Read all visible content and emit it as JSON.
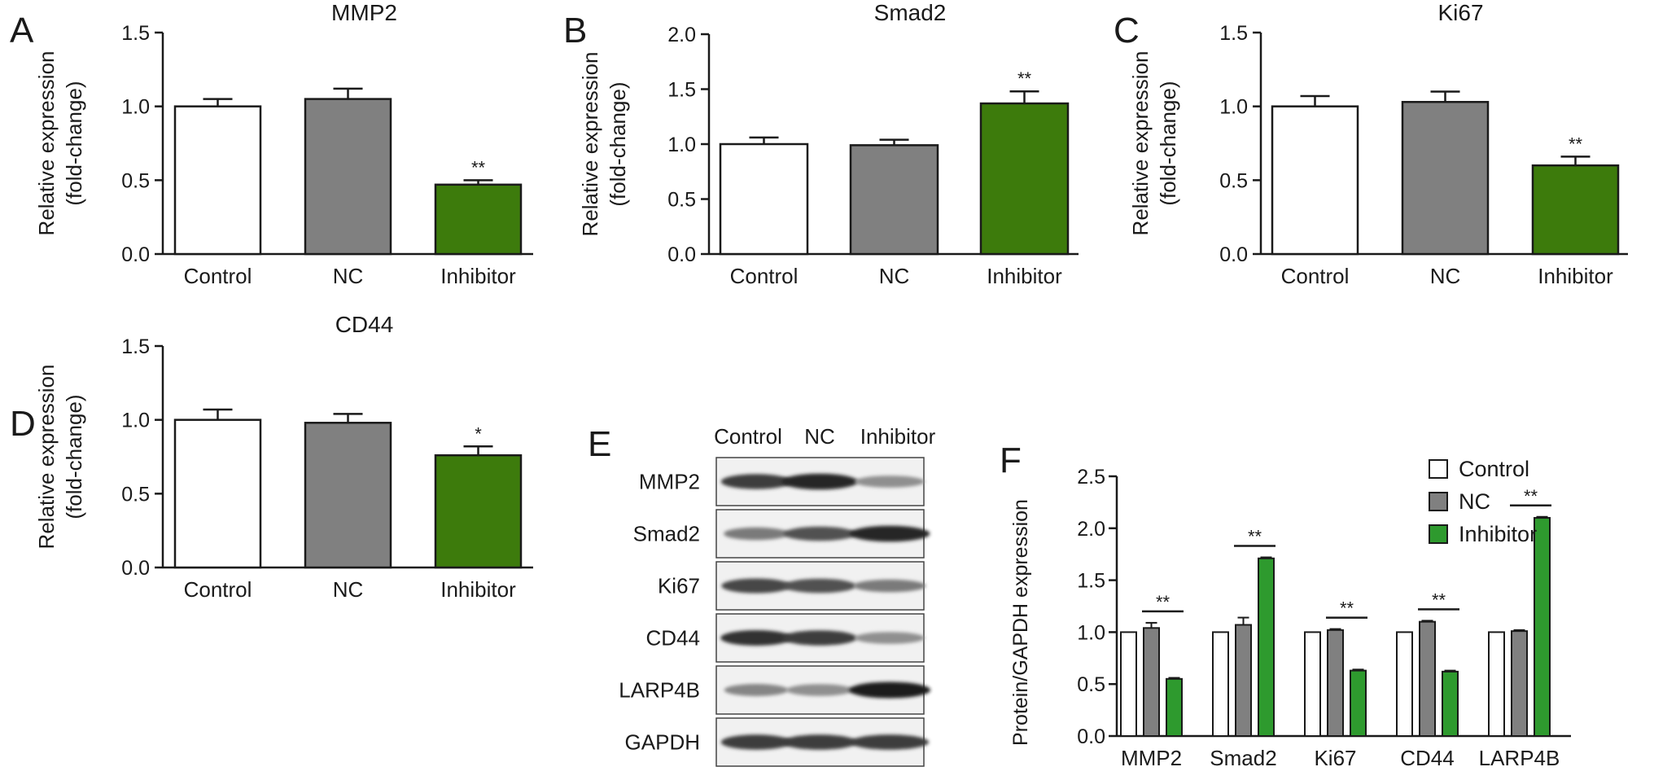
{
  "colors": {
    "control": "#ffffff",
    "nc": "#808080",
    "inhibitor": "#3d7b0c",
    "inhibitor_f": "#2e9a2e",
    "axis": "#1a1a1a"
  },
  "chart_data": [
    {
      "panel": "A",
      "type": "bar",
      "title": "MMP2",
      "ylabel": [
        "Relative expression",
        "(fold-change)"
      ],
      "categories": [
        "Control",
        "NC",
        "Inhibitor"
      ],
      "values": [
        1.0,
        1.05,
        0.47
      ],
      "errors": [
        0.05,
        0.07,
        0.03
      ],
      "sig": [
        "",
        "",
        "**"
      ],
      "ylim": [
        0,
        1.5
      ],
      "yticks": [
        "0.0",
        "0.5",
        "1.0",
        "1.5"
      ]
    },
    {
      "panel": "B",
      "type": "bar",
      "title": "Smad2",
      "ylabel": [
        "Relative expression",
        "(fold-change)"
      ],
      "categories": [
        "Control",
        "NC",
        "Inhibitor"
      ],
      "values": [
        1.0,
        0.99,
        1.37
      ],
      "errors": [
        0.06,
        0.05,
        0.11
      ],
      "sig": [
        "",
        "",
        "**"
      ],
      "ylim": [
        0,
        2.0
      ],
      "yticks": [
        "0.0",
        "0.5",
        "1.0",
        "1.5",
        "2.0"
      ]
    },
    {
      "panel": "C",
      "type": "bar",
      "title": "Ki67",
      "ylabel": [
        "Relative expression",
        "(fold-change)"
      ],
      "categories": [
        "Control",
        "NC",
        "Inhibitor"
      ],
      "values": [
        1.0,
        1.03,
        0.6
      ],
      "errors": [
        0.07,
        0.07,
        0.06
      ],
      "sig": [
        "",
        "",
        "**"
      ],
      "ylim": [
        0,
        1.5
      ],
      "yticks": [
        "0.0",
        "0.5",
        "1.0",
        "1.5"
      ]
    },
    {
      "panel": "D",
      "type": "bar",
      "title": "CD44",
      "ylabel": [
        "Relative expression",
        "(fold-change)"
      ],
      "categories": [
        "Control",
        "NC",
        "Inhibitor"
      ],
      "values": [
        1.0,
        0.98,
        0.76
      ],
      "errors": [
        0.07,
        0.06,
        0.06
      ],
      "sig": [
        "",
        "",
        "*"
      ],
      "ylim": [
        0,
        1.5
      ],
      "yticks": [
        "0.0",
        "0.5",
        "1.0",
        "1.5"
      ]
    },
    {
      "panel": "F",
      "type": "bar",
      "ylabel": [
        "Protein/GAPDH expression"
      ],
      "categories": [
        "MMP2",
        "Smad2",
        "Ki67",
        "CD44",
        "LARP4B"
      ],
      "series": [
        {
          "name": "Control",
          "values": [
            1.0,
            1.0,
            1.0,
            1.0,
            1.0
          ],
          "errors": [
            0,
            0,
            0,
            0,
            0
          ]
        },
        {
          "name": "NC",
          "values": [
            1.04,
            1.07,
            1.02,
            1.1,
            1.01
          ],
          "errors": [
            0.05,
            0.07,
            0.01,
            0.01,
            0.01
          ]
        },
        {
          "name": "Inhibitor",
          "values": [
            0.55,
            1.71,
            0.63,
            0.62,
            2.1
          ],
          "errors": [
            0.01,
            0.01,
            0.01,
            0.01,
            0.01
          ]
        }
      ],
      "sig": [
        "**",
        "**",
        "**",
        "**",
        "**"
      ],
      "ylim": [
        0,
        2.5
      ],
      "yticks": [
        "0.0",
        "0.5",
        "1.0",
        "1.5",
        "2.0",
        "2.5"
      ],
      "legend": "top-right"
    }
  ],
  "blot": {
    "panel": "E",
    "columns": [
      "Control",
      "NC",
      "Inhibitor"
    ],
    "rows": [
      {
        "label": "MMP2",
        "intensity": [
          0.85,
          0.95,
          0.45
        ]
      },
      {
        "label": "Smad2",
        "intensity": [
          0.55,
          0.75,
          0.95
        ]
      },
      {
        "label": "Ki67",
        "intensity": [
          0.8,
          0.75,
          0.55
        ]
      },
      {
        "label": "CD44",
        "intensity": [
          0.9,
          0.85,
          0.45
        ]
      },
      {
        "label": "LARP4B",
        "intensity": [
          0.5,
          0.45,
          1.0
        ]
      },
      {
        "label": "GAPDH",
        "intensity": [
          0.85,
          0.85,
          0.85
        ]
      }
    ]
  }
}
